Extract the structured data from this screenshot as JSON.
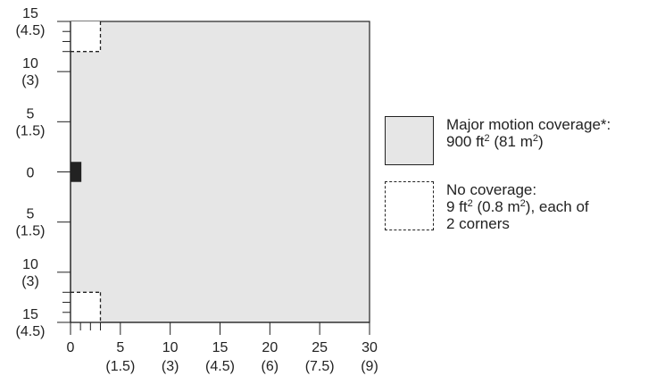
{
  "y_axis": {
    "ticks": [
      {
        "value": 15,
        "ft": "15",
        "m": "(4.5)"
      },
      {
        "value": 10,
        "ft": "10",
        "m": "(3)"
      },
      {
        "value": 5,
        "ft": "5",
        "m": "(1.5)"
      },
      {
        "value": 0,
        "ft": "0",
        "m": ""
      },
      {
        "value": -5,
        "ft": "5",
        "m": "(1.5)"
      },
      {
        "value": -10,
        "ft": "10",
        "m": "(3)"
      },
      {
        "value": -15,
        "ft": "15",
        "m": "(4.5)"
      }
    ],
    "range": [
      -15,
      15
    ]
  },
  "x_axis": {
    "ticks": [
      {
        "value": 0,
        "ft": "0",
        "m": ""
      },
      {
        "value": 5,
        "ft": "5",
        "m": "(1.5)"
      },
      {
        "value": 10,
        "ft": "10",
        "m": "(3)"
      },
      {
        "value": 15,
        "ft": "15",
        "m": "(4.5)"
      },
      {
        "value": 20,
        "ft": "20",
        "m": "(6)"
      },
      {
        "value": 25,
        "ft": "25",
        "m": "(7.5)"
      },
      {
        "value": 30,
        "ft": "30",
        "m": "(9)"
      }
    ],
    "range": [
      0,
      30
    ]
  },
  "coverage": {
    "covered_area": {
      "x": [
        0,
        30
      ],
      "y": [
        -15,
        15
      ]
    },
    "no_coverage_corners": [
      {
        "x": [
          0,
          3
        ],
        "y": [
          12,
          15
        ]
      },
      {
        "x": [
          0,
          3
        ],
        "y": [
          -15,
          -12
        ]
      }
    ],
    "sensor": {
      "x": [
        0,
        1
      ],
      "y": [
        -1,
        1
      ]
    }
  },
  "legend": {
    "covered_line1": "Major motion coverage*:",
    "covered_line2_a": "900 ft",
    "covered_line2_sup1": "2",
    "covered_line2_b": " (81 m",
    "covered_line2_sup2": "2",
    "covered_line2_c": ")",
    "none_line1": "No coverage:",
    "none_line2_a": "9 ft",
    "none_line2_sup1": "2",
    "none_line2_b": " (0.8 m",
    "none_line2_sup2": "2",
    "none_line2_c": "), each of",
    "none_line3": "2 corners"
  },
  "colors": {
    "covered_fill": "#e6e6e6",
    "no_coverage_fill": "#ffffff",
    "sensor": "#222222",
    "stroke": "#222222"
  }
}
